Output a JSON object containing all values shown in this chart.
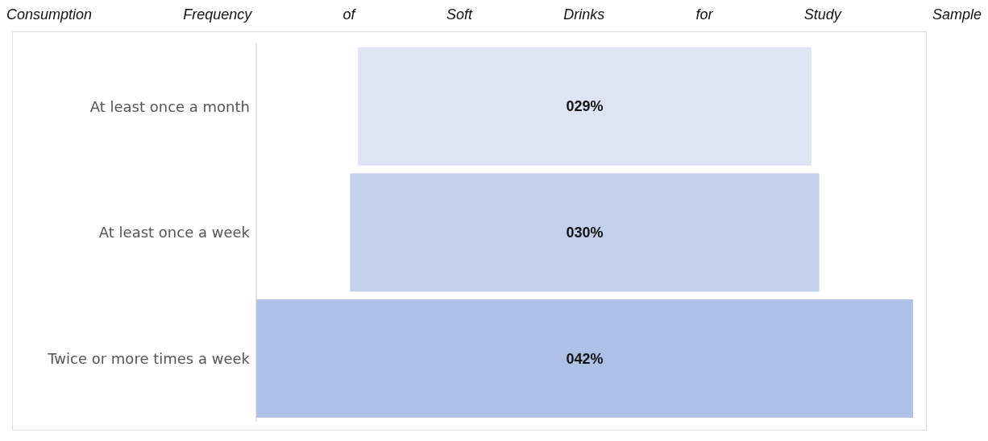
{
  "chart_data": {
    "type": "other",
    "title": "Consumption Frequency of Soft Drinks for Study Sample",
    "categories": [
      "At least once a month",
      "At least once a week",
      "Twice or more times a week"
    ],
    "values": [
      29,
      30,
      42
    ],
    "value_labels": [
      "029%",
      "030%",
      "042%"
    ],
    "colors": [
      "#dde4f3",
      "#c3d0eb",
      "#aec0e6"
    ]
  }
}
